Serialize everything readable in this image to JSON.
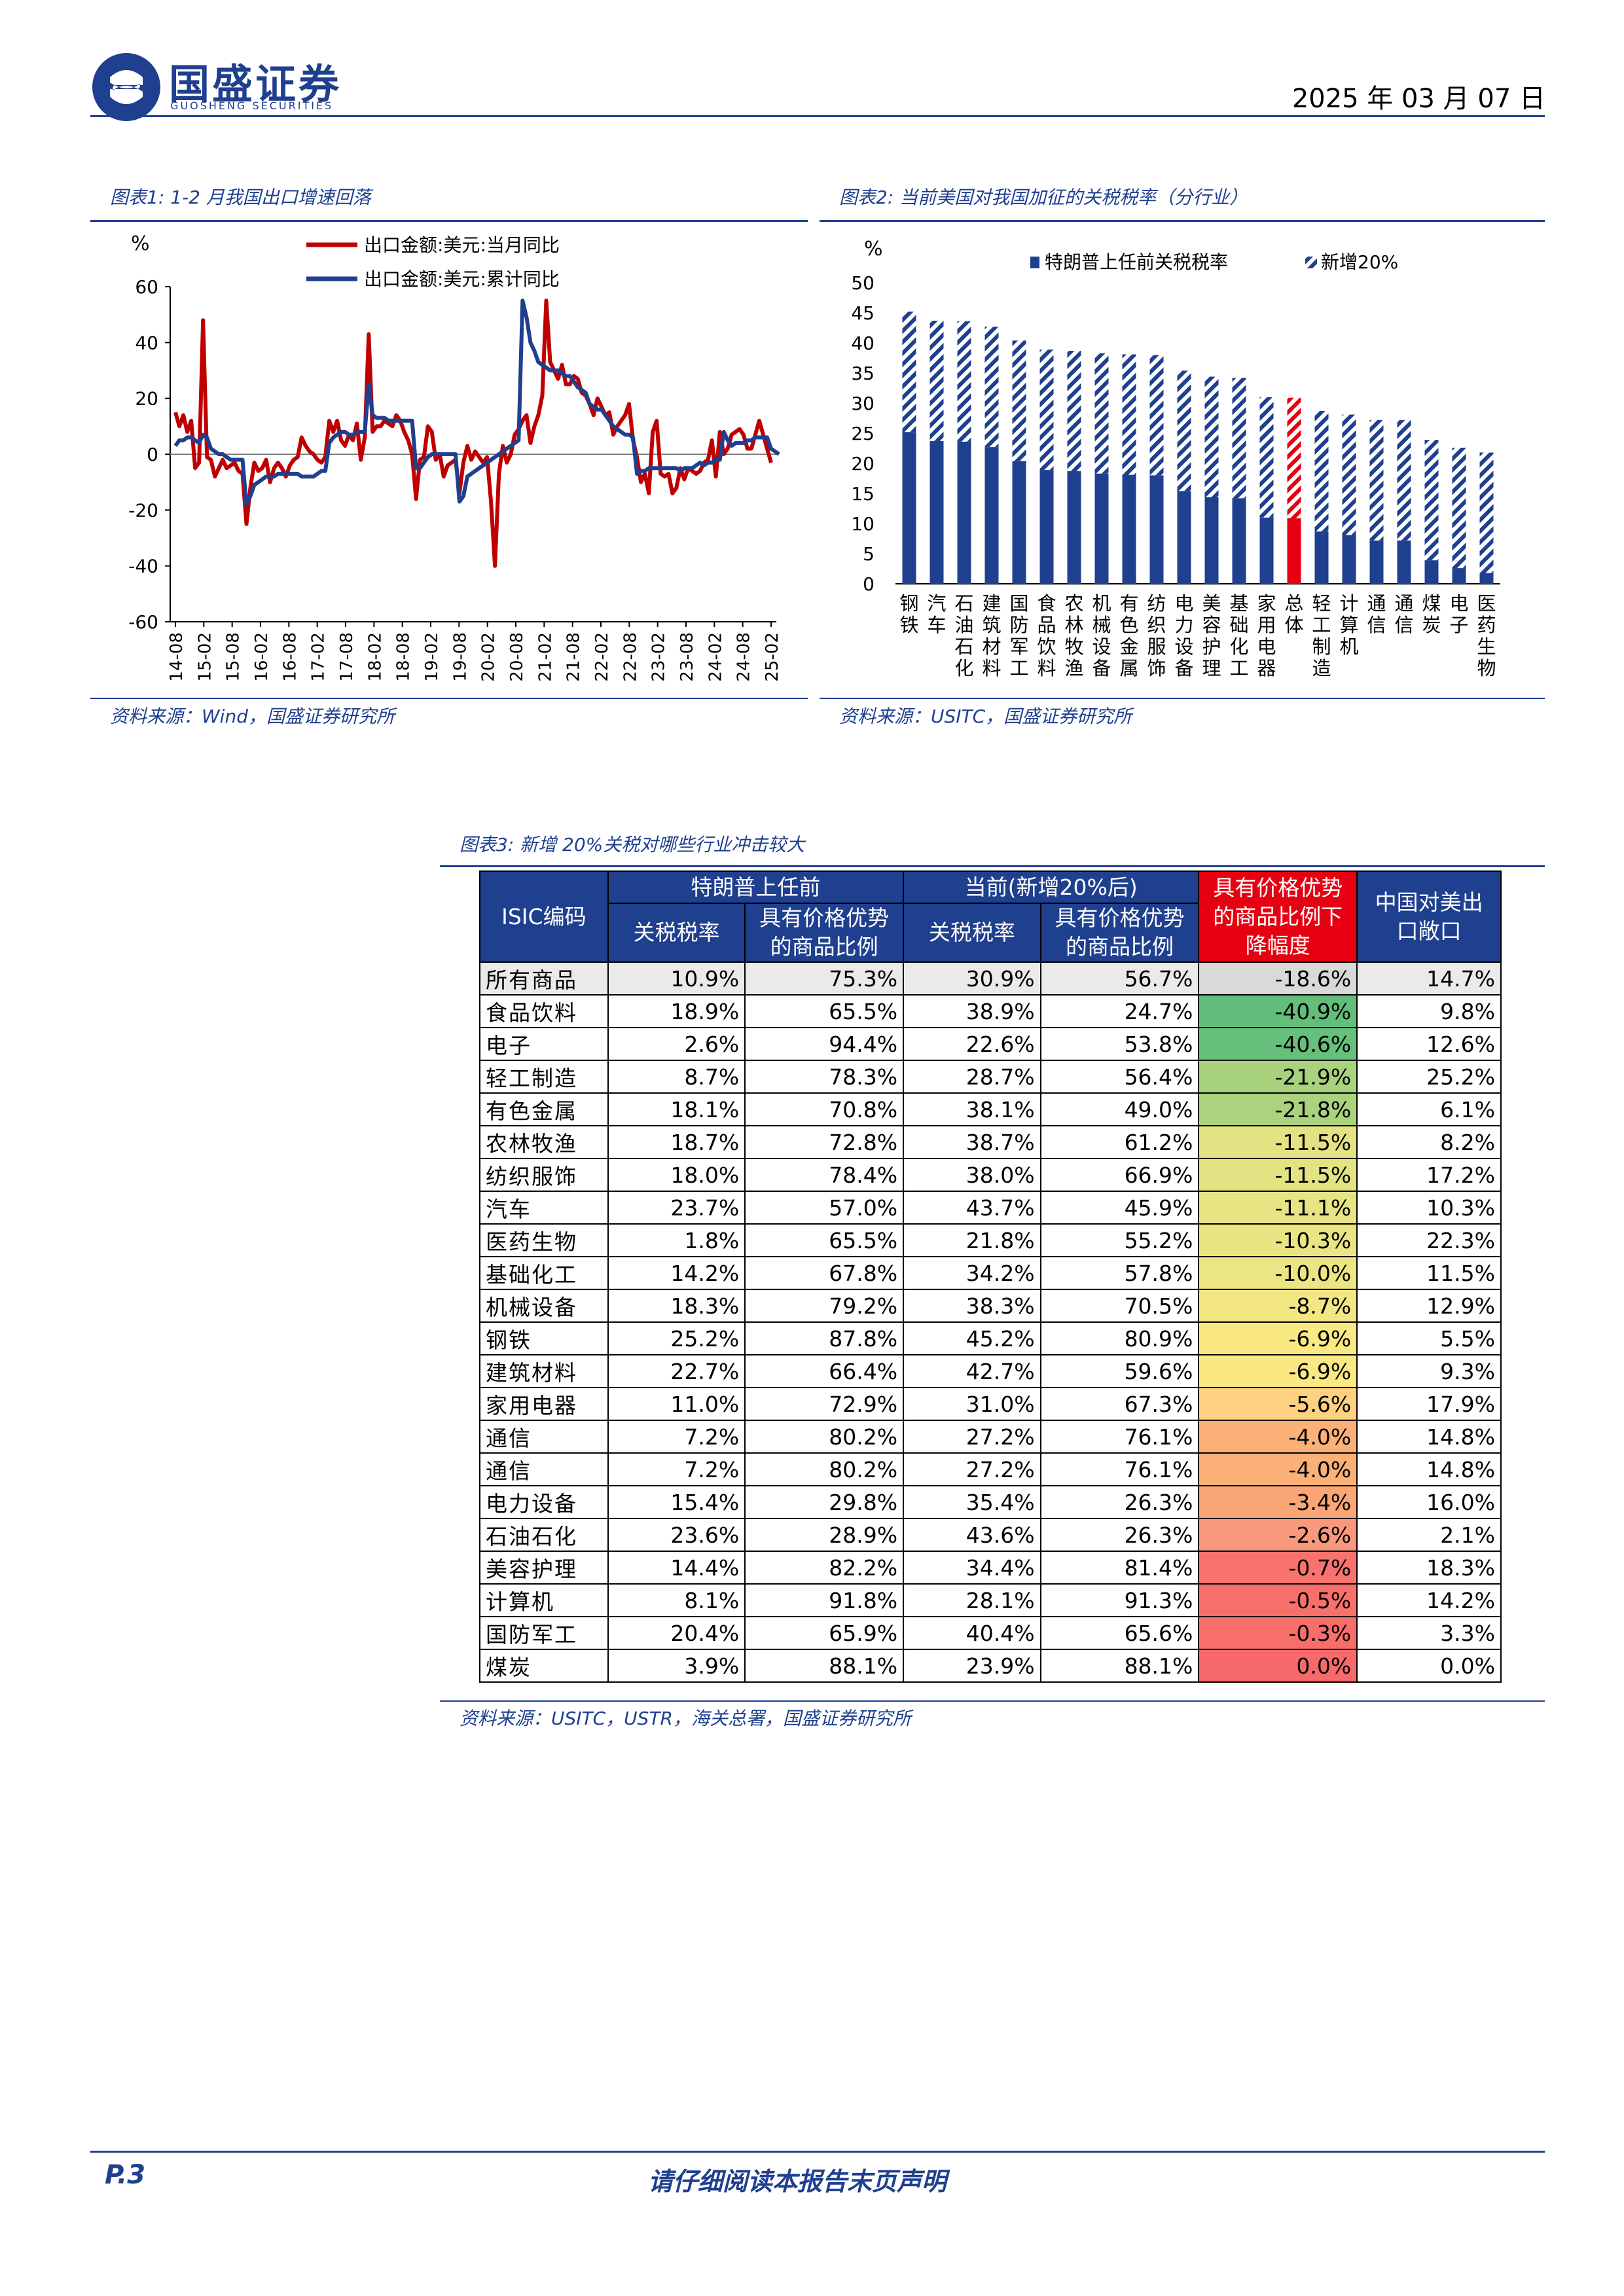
{
  "header": {
    "logo_cn": "国盛证券",
    "logo_en": "GUOSHENG SECURITIES",
    "date": "2025 年 03 月 07 日"
  },
  "fig1": {
    "caption": "图表1:  1-2 月我国出口增速回落",
    "source": "资料来源：Wind，国盛证券研究所",
    "chart_data": {
      "type": "line",
      "ylabel": "%",
      "ylim": [
        -60,
        60
      ],
      "yticks": [
        "60",
        "40",
        "20",
        "0",
        "-20",
        "-40",
        "-60"
      ],
      "xticks": [
        "14-08",
        "15-02",
        "15-08",
        "16-02",
        "16-08",
        "17-02",
        "17-08",
        "18-02",
        "18-08",
        "19-02",
        "19-08",
        "20-02",
        "20-08",
        "21-02",
        "21-08",
        "22-02",
        "22-08",
        "23-02",
        "23-08",
        "24-02",
        "24-08",
        "25-02"
      ],
      "colors": {
        "monthly": "#c00000",
        "cumulative": "#1f3f8f"
      },
      "series": [
        {
          "name": "出口金额:美元:当月同比",
          "values": [
            15,
            10,
            14,
            8,
            12,
            -5,
            -3,
            48,
            -1,
            -2,
            -8,
            -5,
            -2,
            -5,
            -4,
            -3,
            -6,
            -7,
            -25,
            -12,
            -3,
            -6,
            -5,
            -2,
            -10,
            -5,
            -3,
            -5,
            -8,
            -4,
            -2,
            -1,
            6,
            3,
            1,
            0,
            -2,
            -3,
            -1,
            12,
            8,
            12,
            5,
            3,
            7,
            5,
            11,
            -2,
            6,
            43,
            8,
            10,
            10,
            12,
            11,
            10,
            14,
            12,
            8,
            5,
            0,
            -16,
            -2,
            -1,
            10,
            8,
            -2,
            0,
            -8,
            -4,
            -3,
            -2,
            -14,
            -3,
            3,
            -2,
            1,
            -1,
            -3,
            -1,
            -17,
            -40,
            -7,
            3,
            -3,
            0,
            7,
            9,
            12,
            14,
            4,
            10,
            14,
            21,
            55,
            33,
            30,
            27,
            32,
            25,
            25,
            28,
            27,
            22,
            21,
            18,
            14,
            20,
            17,
            14,
            15,
            7,
            10,
            12,
            14,
            18,
            5,
            -1,
            -10,
            -7,
            -14,
            8,
            12,
            -7,
            -8,
            -7,
            -14,
            -12,
            -5,
            -9,
            -5,
            -6,
            -7,
            -6,
            -3,
            -2,
            5,
            -8,
            8,
            0,
            2,
            7,
            8,
            9,
            7,
            2,
            2,
            7,
            12,
            7,
            2,
            -3
          ]
        },
        {
          "name": "出口金额:美元:累计同比",
          "values": [
            3,
            5,
            5,
            6,
            6,
            5,
            4,
            7,
            6,
            2,
            1,
            0,
            0,
            -1,
            -2,
            -2,
            -2,
            -2,
            -18,
            -15,
            -11,
            -10,
            -9,
            -8,
            -8,
            -8,
            -7,
            -7,
            -7,
            -7,
            -7,
            -7,
            -8,
            -8,
            -8,
            -8,
            -7,
            -6,
            -6,
            4,
            6,
            7,
            8,
            8,
            7,
            7,
            8,
            8,
            8,
            25,
            14,
            13,
            13,
            13,
            12,
            12,
            12,
            12,
            12,
            12,
            12,
            -5,
            -5,
            -3,
            -1,
            0,
            0,
            0,
            0,
            0,
            0,
            0,
            -17,
            -15,
            -8,
            -7,
            -6,
            -5,
            -4,
            -3,
            -2,
            -1,
            0,
            1,
            2,
            3,
            4,
            5,
            55,
            49,
            40,
            37,
            33,
            32,
            31,
            30,
            30,
            30,
            29,
            28,
            28,
            26,
            24,
            23,
            22,
            18,
            17,
            16,
            16,
            14,
            12,
            10,
            9,
            8,
            7,
            7,
            6,
            -7,
            -6,
            -6,
            -5,
            -5,
            -5,
            -5,
            -5,
            -5,
            -5,
            -5,
            -6,
            -5,
            -5,
            -5,
            -4,
            -3,
            -4,
            -3,
            -3,
            -2,
            -2,
            8,
            5,
            3,
            4,
            4,
            4,
            5,
            5,
            6,
            6,
            6,
            6,
            2,
            1,
            0
          ]
        }
      ]
    }
  },
  "fig2": {
    "caption": "图表2:  当前美国对我国加征的关税税率（分行业）",
    "source": "资料来源：USITC，国盛证券研究所",
    "chart_data": {
      "type": "bar",
      "ylabel": "%",
      "ylim": [
        0,
        50
      ],
      "yticks": [
        "50",
        "45",
        "40",
        "35",
        "30",
        "25",
        "20",
        "15",
        "10",
        "5",
        "0"
      ],
      "colors": {
        "base": "#1f3f8f",
        "highlight": "#e60012"
      },
      "categories": [
        "钢铁",
        "汽车",
        "石油石化",
        "建筑材料",
        "国防军工",
        "食品饮料",
        "农林牧渔",
        "机械设备",
        "有色金属",
        "纺织服饰",
        "电力设备",
        "美容护理",
        "基础化工",
        "家用电器",
        "总体",
        "轻工制造",
        "计算机",
        "通信",
        "通信",
        "煤炭",
        "电子",
        "医药生物"
      ],
      "series": [
        {
          "name": "特朗普上任前关税税率",
          "values": [
            25.2,
            23.7,
            23.6,
            22.7,
            20.4,
            18.9,
            18.7,
            18.3,
            18.1,
            18.0,
            15.4,
            14.4,
            14.2,
            11.0,
            10.9,
            8.7,
            8.1,
            7.2,
            7.2,
            3.9,
            2.6,
            1.8
          ]
        },
        {
          "name": "新增20%",
          "values": [
            20,
            20,
            20,
            20,
            20,
            20,
            20,
            20,
            20,
            20,
            20,
            20,
            20,
            20,
            20,
            20,
            20,
            20,
            20,
            20,
            20,
            20
          ]
        }
      ],
      "highlight_category": "总体"
    }
  },
  "fig3": {
    "caption": "图表3:  新增 20%关税对哪些行业冲击较大",
    "source": "资料来源：USITC，USTR，海关总署，国盛证券研究所",
    "headers": {
      "isic": "ISIC编码",
      "pre": "特朗普上任前",
      "cur": "当前(新增20%后)",
      "drop_l1": "具有价格优势",
      "drop_l2": "的商品比例下",
      "drop_l3": "降幅度",
      "exp_l1": "中国对美出",
      "exp_l2": "口敞口",
      "tax": "关税税率",
      "share_l1": "具有价格优势",
      "share_l2": "的商品比例"
    },
    "rows": [
      [
        "所有商品",
        "10.9%",
        "75.3%",
        "30.9%",
        "56.7%",
        "-18.6%",
        "14.7%"
      ],
      [
        "食品饮料",
        "18.9%",
        "65.5%",
        "38.9%",
        "24.7%",
        "-40.9%",
        "9.8%"
      ],
      [
        "电子",
        "2.6%",
        "94.4%",
        "22.6%",
        "53.8%",
        "-40.6%",
        "12.6%"
      ],
      [
        "轻工制造",
        "8.7%",
        "78.3%",
        "28.7%",
        "56.4%",
        "-21.9%",
        "25.2%"
      ],
      [
        "有色金属",
        "18.1%",
        "70.8%",
        "38.1%",
        "49.0%",
        "-21.8%",
        "6.1%"
      ],
      [
        "农林牧渔",
        "18.7%",
        "72.8%",
        "38.7%",
        "61.2%",
        "-11.5%",
        "8.2%"
      ],
      [
        "纺织服饰",
        "18.0%",
        "78.4%",
        "38.0%",
        "66.9%",
        "-11.5%",
        "17.2%"
      ],
      [
        "汽车",
        "23.7%",
        "57.0%",
        "43.7%",
        "45.9%",
        "-11.1%",
        "10.3%"
      ],
      [
        "医药生物",
        "1.8%",
        "65.5%",
        "21.8%",
        "55.2%",
        "-10.3%",
        "22.3%"
      ],
      [
        "基础化工",
        "14.2%",
        "67.8%",
        "34.2%",
        "57.8%",
        "-10.0%",
        "11.5%"
      ],
      [
        "机械设备",
        "18.3%",
        "79.2%",
        "38.3%",
        "70.5%",
        "-8.7%",
        "12.9%"
      ],
      [
        "钢铁",
        "25.2%",
        "87.8%",
        "45.2%",
        "80.9%",
        "-6.9%",
        "5.5%"
      ],
      [
        "建筑材料",
        "22.7%",
        "66.4%",
        "42.7%",
        "59.6%",
        "-6.9%",
        "9.3%"
      ],
      [
        "家用电器",
        "11.0%",
        "72.9%",
        "31.0%",
        "67.3%",
        "-5.6%",
        "17.9%"
      ],
      [
        "通信",
        "7.2%",
        "80.2%",
        "27.2%",
        "76.1%",
        "-4.0%",
        "14.8%"
      ],
      [
        "通信",
        "7.2%",
        "80.2%",
        "27.2%",
        "76.1%",
        "-4.0%",
        "14.8%"
      ],
      [
        "电力设备",
        "15.4%",
        "29.8%",
        "35.4%",
        "26.3%",
        "-3.4%",
        "16.0%"
      ],
      [
        "石油石化",
        "23.6%",
        "28.9%",
        "43.6%",
        "26.3%",
        "-2.6%",
        "2.1%"
      ],
      [
        "美容护理",
        "14.4%",
        "82.2%",
        "34.4%",
        "81.4%",
        "-0.7%",
        "18.3%"
      ],
      [
        "计算机",
        "8.1%",
        "91.8%",
        "28.1%",
        "91.3%",
        "-0.5%",
        "14.2%"
      ],
      [
        "国防军工",
        "20.4%",
        "65.9%",
        "40.4%",
        "65.6%",
        "-0.3%",
        "3.3%"
      ],
      [
        "煤炭",
        "3.9%",
        "88.1%",
        "23.9%",
        "88.1%",
        "0.0%",
        "0.0%"
      ]
    ],
    "drop_colors": [
      "#d9d9d9",
      "#63be7b",
      "#66bf7b",
      "#a9d27f",
      "#aad27f",
      "#e4e383",
      "#e4e383",
      "#e6e483",
      "#eae583",
      "#ece583",
      "#f2e783",
      "#fae983",
      "#fae983",
      "#fdd17f",
      "#fbb078",
      "#fbb078",
      "#faa676",
      "#f9987d",
      "#f8736d",
      "#f8706c",
      "#f86e6b",
      "#f8696b"
    ]
  },
  "footer": {
    "page": "P.3",
    "notice": "请仔细阅读本报告末页声明"
  }
}
